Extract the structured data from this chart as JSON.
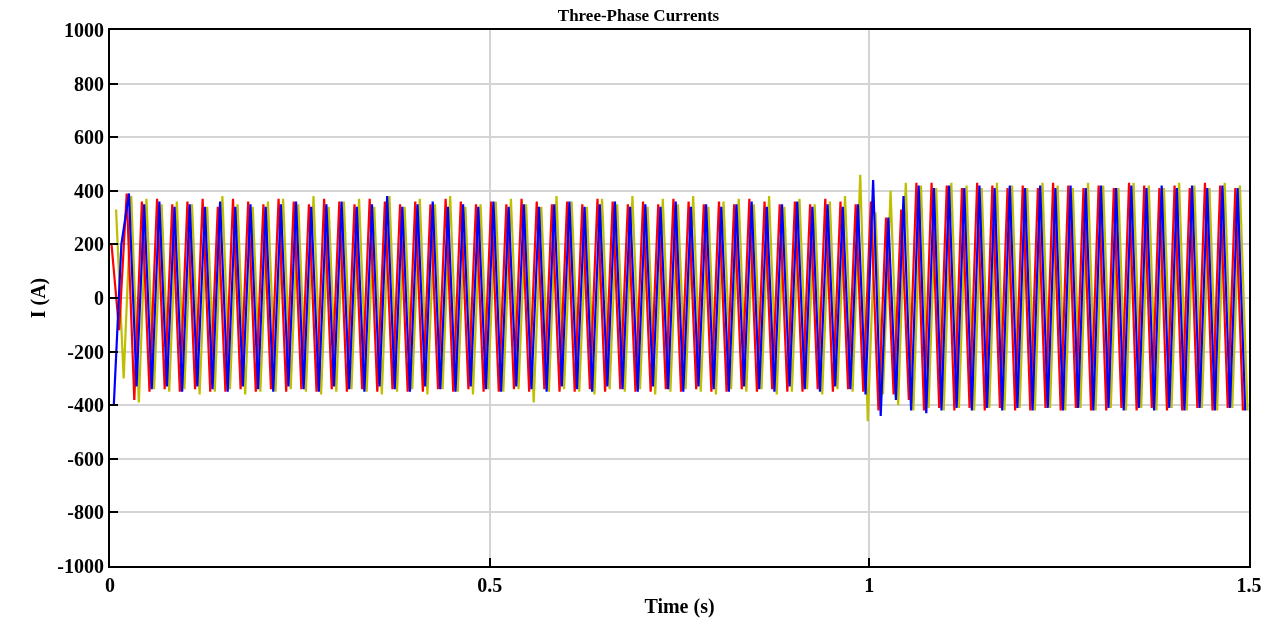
{
  "chart_data": {
    "type": "line",
    "title": "Three-Phase Currents",
    "xlabel": "Time (s)",
    "ylabel": "I (A)",
    "xlim": [
      0,
      1.5
    ],
    "xticks": [
      0,
      0.5,
      1,
      1.5
    ],
    "ylim": [
      -1000,
      1000
    ],
    "yticks": [
      -1000,
      -800,
      -600,
      -400,
      -200,
      0,
      200,
      400,
      600,
      800,
      1000
    ],
    "grid": true,
    "line_style": "solid",
    "series": [
      {
        "color": "#bfbf00",
        "x": [
          0.008,
          0.018,
          0.028,
          0.038,
          0.048,
          0.058,
          0.068,
          0.078,
          0.088,
          0.098,
          0.108,
          0.118,
          0.128,
          0.138,
          0.148,
          0.158,
          0.168,
          0.178,
          0.188,
          0.198,
          0.208,
          0.218,
          0.228,
          0.238,
          0.248,
          0.258,
          0.268,
          0.278,
          0.288,
          0.298,
          0.308,
          0.318,
          0.328,
          0.338,
          0.348,
          0.358,
          0.368,
          0.378,
          0.388,
          0.398,
          0.408,
          0.418,
          0.428,
          0.438,
          0.448,
          0.458,
          0.468,
          0.478,
          0.488,
          0.498,
          0.508,
          0.518,
          0.528,
          0.538,
          0.548,
          0.558,
          0.568,
          0.578,
          0.588,
          0.598,
          0.608,
          0.618,
          0.628,
          0.638,
          0.648,
          0.658,
          0.668,
          0.678,
          0.688,
          0.698,
          0.708,
          0.718,
          0.728,
          0.738,
          0.748,
          0.758,
          0.768,
          0.778,
          0.788,
          0.798,
          0.808,
          0.818,
          0.828,
          0.838,
          0.848,
          0.858,
          0.868,
          0.878,
          0.888,
          0.898,
          0.908,
          0.918,
          0.928,
          0.938,
          0.948,
          0.958,
          0.968,
          0.978,
          0.988,
          0.998,
          1.008,
          1.018,
          1.028,
          1.038,
          1.048,
          1.058,
          1.068,
          1.078,
          1.088,
          1.098,
          1.108,
          1.118,
          1.128,
          1.138,
          1.148,
          1.158,
          1.168,
          1.178,
          1.188,
          1.198,
          1.208,
          1.218,
          1.228,
          1.238,
          1.248,
          1.258,
          1.268,
          1.278,
          1.288,
          1.298,
          1.308,
          1.318,
          1.328,
          1.338,
          1.348,
          1.358,
          1.368,
          1.378,
          1.388,
          1.398,
          1.408,
          1.418,
          1.428,
          1.438,
          1.448,
          1.458,
          1.468,
          1.478,
          1.488,
          1.498
        ],
        "values": [
          330,
          -300,
          380,
          -390,
          370,
          -340,
          350,
          -350,
          360,
          -340,
          350,
          -360,
          340,
          -350,
          380,
          -340,
          350,
          -360,
          340,
          -350,
          360,
          -350,
          370,
          -340,
          350,
          -350,
          380,
          -360,
          340,
          -350,
          360,
          -340,
          370,
          -350,
          340,
          -360,
          380,
          -350,
          340,
          -340,
          370,
          -360,
          350,
          -340,
          380,
          -350,
          340,
          -360,
          350,
          -340,
          360,
          -350,
          370,
          -340,
          350,
          -390,
          340,
          -350,
          380,
          -340,
          360,
          -350,
          340,
          -360,
          370,
          -340,
          350,
          -350,
          380,
          -340,
          340,
          -360,
          370,
          -350,
          350,
          -340,
          380,
          -350,
          340,
          -360,
          360,
          -340,
          370,
          -350,
          350,
          -340,
          380,
          -360,
          340,
          -350,
          370,
          -340,
          350,
          -360,
          360,
          -340,
          380,
          -350,
          460,
          -460,
          320,
          -360,
          400,
          -400,
          430,
          -420,
          420,
          -410,
          410,
          -420,
          430,
          -410,
          420,
          -420,
          410,
          -410,
          430,
          -420,
          420,
          -410,
          410,
          -420,
          430,
          -410,
          420,
          -420,
          410,
          -410,
          430,
          -420,
          420,
          -410,
          410,
          -420,
          430,
          -410,
          420,
          -420,
          410,
          -410,
          430,
          -420,
          420,
          -410,
          410,
          -420,
          430,
          -410,
          420,
          -420
        ]
      },
      {
        "color": "#ff0000",
        "x": [
          0.002,
          0.012,
          0.022,
          0.032,
          0.042,
          0.052,
          0.062,
          0.072,
          0.082,
          0.092,
          0.102,
          0.112,
          0.122,
          0.132,
          0.142,
          0.152,
          0.162,
          0.172,
          0.182,
          0.192,
          0.202,
          0.212,
          0.222,
          0.232,
          0.242,
          0.252,
          0.262,
          0.272,
          0.282,
          0.292,
          0.302,
          0.312,
          0.322,
          0.332,
          0.342,
          0.352,
          0.362,
          0.372,
          0.382,
          0.392,
          0.402,
          0.412,
          0.422,
          0.432,
          0.442,
          0.452,
          0.462,
          0.472,
          0.482,
          0.492,
          0.502,
          0.512,
          0.522,
          0.532,
          0.542,
          0.552,
          0.562,
          0.572,
          0.582,
          0.592,
          0.602,
          0.612,
          0.622,
          0.632,
          0.642,
          0.652,
          0.662,
          0.672,
          0.682,
          0.692,
          0.702,
          0.712,
          0.722,
          0.732,
          0.742,
          0.752,
          0.762,
          0.772,
          0.782,
          0.792,
          0.802,
          0.812,
          0.822,
          0.832,
          0.842,
          0.852,
          0.862,
          0.872,
          0.882,
          0.892,
          0.902,
          0.912,
          0.922,
          0.932,
          0.942,
          0.952,
          0.962,
          0.972,
          0.982,
          0.992,
          1.002,
          1.012,
          1.022,
          1.032,
          1.042,
          1.052,
          1.062,
          1.072,
          1.082,
          1.092,
          1.102,
          1.112,
          1.122,
          1.132,
          1.142,
          1.152,
          1.162,
          1.172,
          1.182,
          1.192,
          1.202,
          1.212,
          1.222,
          1.232,
          1.242,
          1.252,
          1.262,
          1.272,
          1.282,
          1.292,
          1.302,
          1.312,
          1.322,
          1.332,
          1.342,
          1.352,
          1.362,
          1.372,
          1.382,
          1.392,
          1.402,
          1.412,
          1.422,
          1.432,
          1.442,
          1.452,
          1.462,
          1.472,
          1.482,
          1.492
        ],
        "values": [
          200,
          -120,
          390,
          -380,
          360,
          -350,
          370,
          -340,
          350,
          -350,
          360,
          -340,
          370,
          -350,
          340,
          -350,
          370,
          -340,
          360,
          -350,
          350,
          -340,
          370,
          -350,
          360,
          -340,
          350,
          -350,
          370,
          -340,
          360,
          -350,
          350,
          -340,
          370,
          -350,
          360,
          -340,
          350,
          -350,
          360,
          -350,
          350,
          -340,
          370,
          -350,
          360,
          -340,
          350,
          -350,
          360,
          -350,
          350,
          -340,
          370,
          -350,
          360,
          -340,
          350,
          -350,
          360,
          -350,
          350,
          -340,
          370,
          -350,
          360,
          -340,
          350,
          -350,
          360,
          -350,
          350,
          -340,
          370,
          -350,
          360,
          -340,
          350,
          -350,
          360,
          -350,
          350,
          -340,
          370,
          -350,
          360,
          -340,
          350,
          -350,
          360,
          -350,
          350,
          -340,
          370,
          -350,
          360,
          -340,
          350,
          -350,
          360,
          -420,
          300,
          -360,
          330,
          -380,
          430,
          -420,
          430,
          -410,
          420,
          -420,
          410,
          -410,
          430,
          -420,
          420,
          -410,
          410,
          -420,
          420,
          -420,
          410,
          -410,
          430,
          -420,
          420,
          -410,
          410,
          -420,
          420,
          -420,
          410,
          -410,
          430,
          -420,
          420,
          -410,
          410,
          -420,
          420,
          -420,
          410,
          -410,
          430,
          -420,
          420,
          -410,
          410,
          -420
        ]
      },
      {
        "color": "#0000ff",
        "x": [
          0.005,
          0.015,
          0.025,
          0.035,
          0.045,
          0.055,
          0.065,
          0.075,
          0.085,
          0.095,
          0.105,
          0.115,
          0.125,
          0.135,
          0.145,
          0.155,
          0.165,
          0.175,
          0.185,
          0.195,
          0.205,
          0.215,
          0.225,
          0.235,
          0.245,
          0.255,
          0.265,
          0.275,
          0.285,
          0.295,
          0.305,
          0.315,
          0.325,
          0.335,
          0.345,
          0.355,
          0.365,
          0.375,
          0.385,
          0.395,
          0.405,
          0.415,
          0.425,
          0.435,
          0.445,
          0.455,
          0.465,
          0.475,
          0.485,
          0.495,
          0.505,
          0.515,
          0.525,
          0.535,
          0.545,
          0.555,
          0.565,
          0.575,
          0.585,
          0.595,
          0.605,
          0.615,
          0.625,
          0.635,
          0.645,
          0.655,
          0.665,
          0.675,
          0.685,
          0.695,
          0.705,
          0.715,
          0.725,
          0.735,
          0.745,
          0.755,
          0.765,
          0.775,
          0.785,
          0.795,
          0.805,
          0.815,
          0.825,
          0.835,
          0.845,
          0.855,
          0.865,
          0.875,
          0.885,
          0.895,
          0.905,
          0.915,
          0.925,
          0.935,
          0.945,
          0.955,
          0.965,
          0.975,
          0.985,
          0.995,
          1.005,
          1.015,
          1.025,
          1.035,
          1.045,
          1.055,
          1.065,
          1.075,
          1.085,
          1.095,
          1.105,
          1.115,
          1.125,
          1.135,
          1.145,
          1.155,
          1.165,
          1.175,
          1.185,
          1.195,
          1.205,
          1.215,
          1.225,
          1.235,
          1.245,
          1.255,
          1.265,
          1.275,
          1.285,
          1.295,
          1.305,
          1.315,
          1.325,
          1.335,
          1.345,
          1.355,
          1.365,
          1.375,
          1.385,
          1.395,
          1.405,
          1.415,
          1.425,
          1.435,
          1.445,
          1.455,
          1.465,
          1.475,
          1.485,
          1.495
        ],
        "values": [
          -400,
          200,
          390,
          -330,
          350,
          -340,
          360,
          -330,
          340,
          -350,
          350,
          -330,
          340,
          -340,
          360,
          -350,
          340,
          -330,
          350,
          -340,
          340,
          -350,
          350,
          -330,
          360,
          -340,
          340,
          -350,
          350,
          -330,
          360,
          -340,
          340,
          -350,
          350,
          -330,
          380,
          -340,
          340,
          -350,
          350,
          -330,
          360,
          -340,
          340,
          -350,
          350,
          -330,
          340,
          -340,
          360,
          -350,
          340,
          -330,
          350,
          -340,
          340,
          -350,
          350,
          -330,
          360,
          -340,
          340,
          -350,
          350,
          -330,
          360,
          -340,
          340,
          -350,
          350,
          -330,
          340,
          -340,
          360,
          -350,
          340,
          -330,
          350,
          -340,
          340,
          -350,
          350,
          -330,
          360,
          -340,
          340,
          -350,
          350,
          -330,
          360,
          -340,
          340,
          -350,
          350,
          -330,
          340,
          -340,
          350,
          -360,
          440,
          -440,
          300,
          -380,
          380,
          -420,
          420,
          -430,
          410,
          -420,
          420,
          -410,
          410,
          -420,
          420,
          -410,
          410,
          -420,
          420,
          -410,
          410,
          -420,
          420,
          -410,
          410,
          -420,
          420,
          -410,
          410,
          -420,
          420,
          -410,
          410,
          -420,
          420,
          -410,
          410,
          -420,
          420,
          -410,
          410,
          -420,
          420,
          -410,
          410,
          -420,
          420,
          -410,
          410,
          -420
        ]
      }
    ]
  }
}
